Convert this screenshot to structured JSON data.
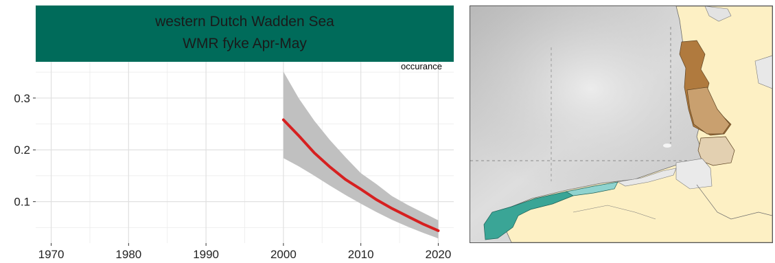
{
  "panel": {
    "title_line1": "western Dutch Wadden Sea",
    "title_line2": "WMR fyke Apr-May",
    "variable_label": "occurance"
  },
  "colors": {
    "strip": "#006b5a",
    "trend_line": "#d62020",
    "ribbon": "#bdbdbd",
    "grid": "#ebebeb"
  },
  "chart_data": {
    "type": "line",
    "title": "western Dutch Wadden Sea — WMR fyke Apr-May",
    "xlabel": "",
    "ylabel": "",
    "xlim": [
      1968,
      2022
    ],
    "ylim": [
      0.02,
      0.37
    ],
    "x_ticks": [
      1970,
      1980,
      1990,
      2000,
      2010,
      2020
    ],
    "y_ticks": [
      0.1,
      0.2,
      0.3
    ],
    "grid": true,
    "series": [
      {
        "name": "occurance",
        "x": [
          2000,
          2002,
          2004,
          2006,
          2008,
          2010,
          2012,
          2014,
          2016,
          2018,
          2020
        ],
        "y": [
          0.258,
          0.227,
          0.194,
          0.167,
          0.143,
          0.124,
          0.104,
          0.087,
          0.072,
          0.057,
          0.044
        ],
        "lower": [
          0.184,
          0.168,
          0.15,
          0.131,
          0.113,
          0.096,
          0.08,
          0.065,
          0.052,
          0.04,
          0.029
        ],
        "upper": [
          0.351,
          0.299,
          0.256,
          0.219,
          0.186,
          0.155,
          0.134,
          0.111,
          0.094,
          0.079,
          0.064
        ]
      }
    ]
  },
  "map": {
    "region_colors": {
      "sea": "#d9d9d9",
      "land": "#fdf0c4",
      "western_dws": "#3aa596",
      "western_dws_light": "#8fd3cf",
      "eastern_1": "#b07a3e",
      "eastern_2": "#c9a06f",
      "eastern_3": "#e3d0b1"
    }
  }
}
